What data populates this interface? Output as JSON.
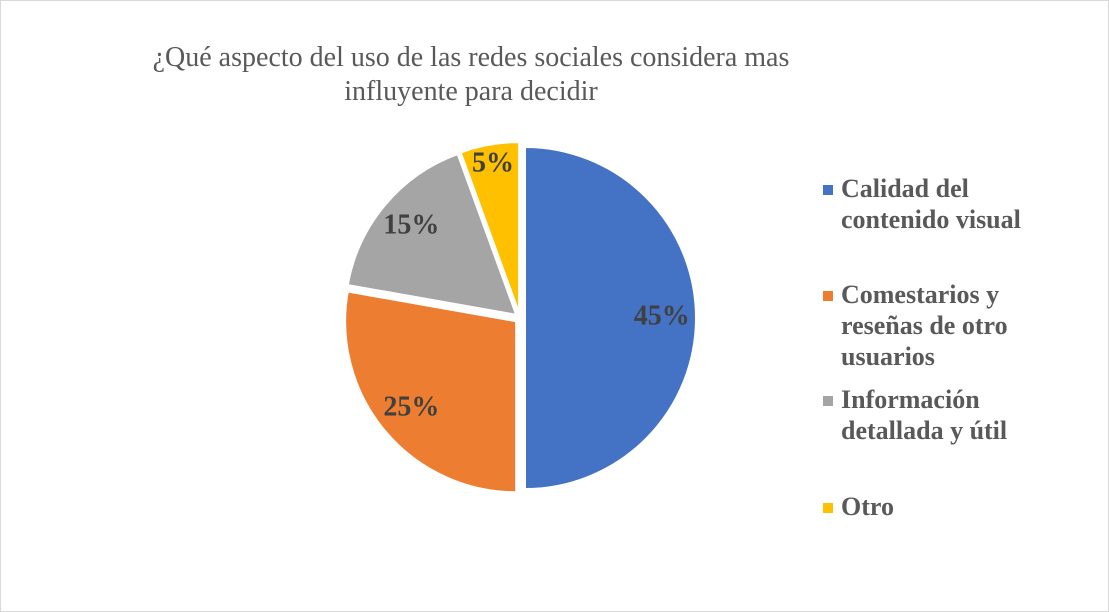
{
  "chart_data": {
    "type": "pie",
    "title": "¿Qué aspecto del uso de las redes sociales considera mas influyente para decidir",
    "categories": [
      "Calidad del contenido visual",
      "Comestarios y reseñas de otro usuarios",
      "Información detallada y útil",
      "Otro"
    ],
    "values": [
      45,
      25,
      15,
      5
    ],
    "value_labels": [
      "45%",
      "25%",
      "15%",
      "5%"
    ],
    "colors": [
      "#4472c4",
      "#ed7d31",
      "#a5a5a5",
      "#ffc000"
    ],
    "legend": "right"
  }
}
